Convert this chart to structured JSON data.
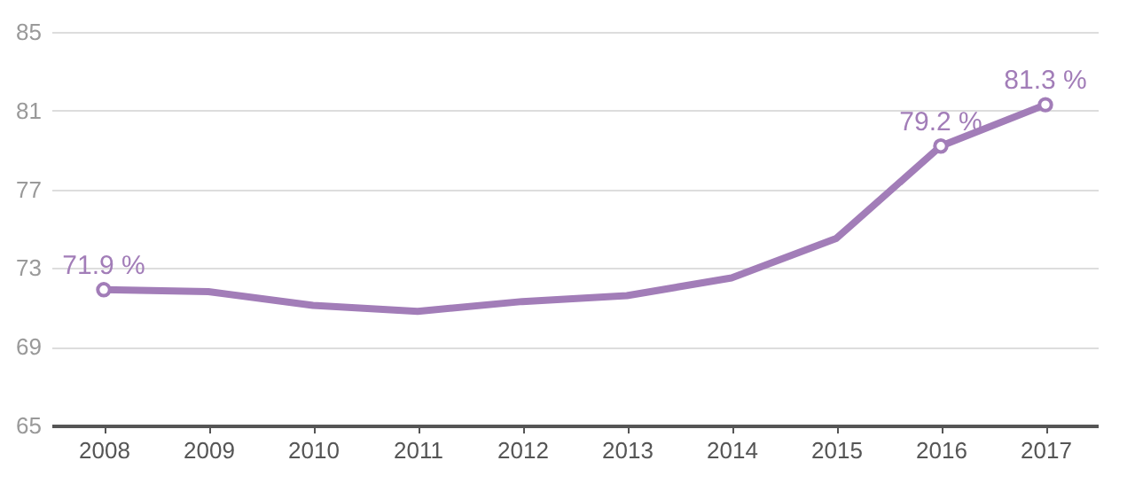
{
  "chart_data": {
    "type": "line",
    "categories": [
      "2008",
      "2009",
      "2010",
      "2011",
      "2012",
      "2013",
      "2014",
      "2015",
      "2016",
      "2017"
    ],
    "series": [
      {
        "color": "#a27db8",
        "values": [
          71.9,
          71.8,
          71.1,
          70.8,
          71.3,
          71.6,
          72.5,
          74.5,
          79.2,
          81.3
        ],
        "value_labels": [
          "71.9 %",
          null,
          null,
          null,
          null,
          null,
          null,
          null,
          "79.2 %",
          "81.3 %"
        ]
      }
    ],
    "ylim": [
      65,
      85
    ],
    "yticks": [
      65,
      69,
      73,
      77,
      81,
      85
    ],
    "grid": "y",
    "line_style": "solid"
  }
}
